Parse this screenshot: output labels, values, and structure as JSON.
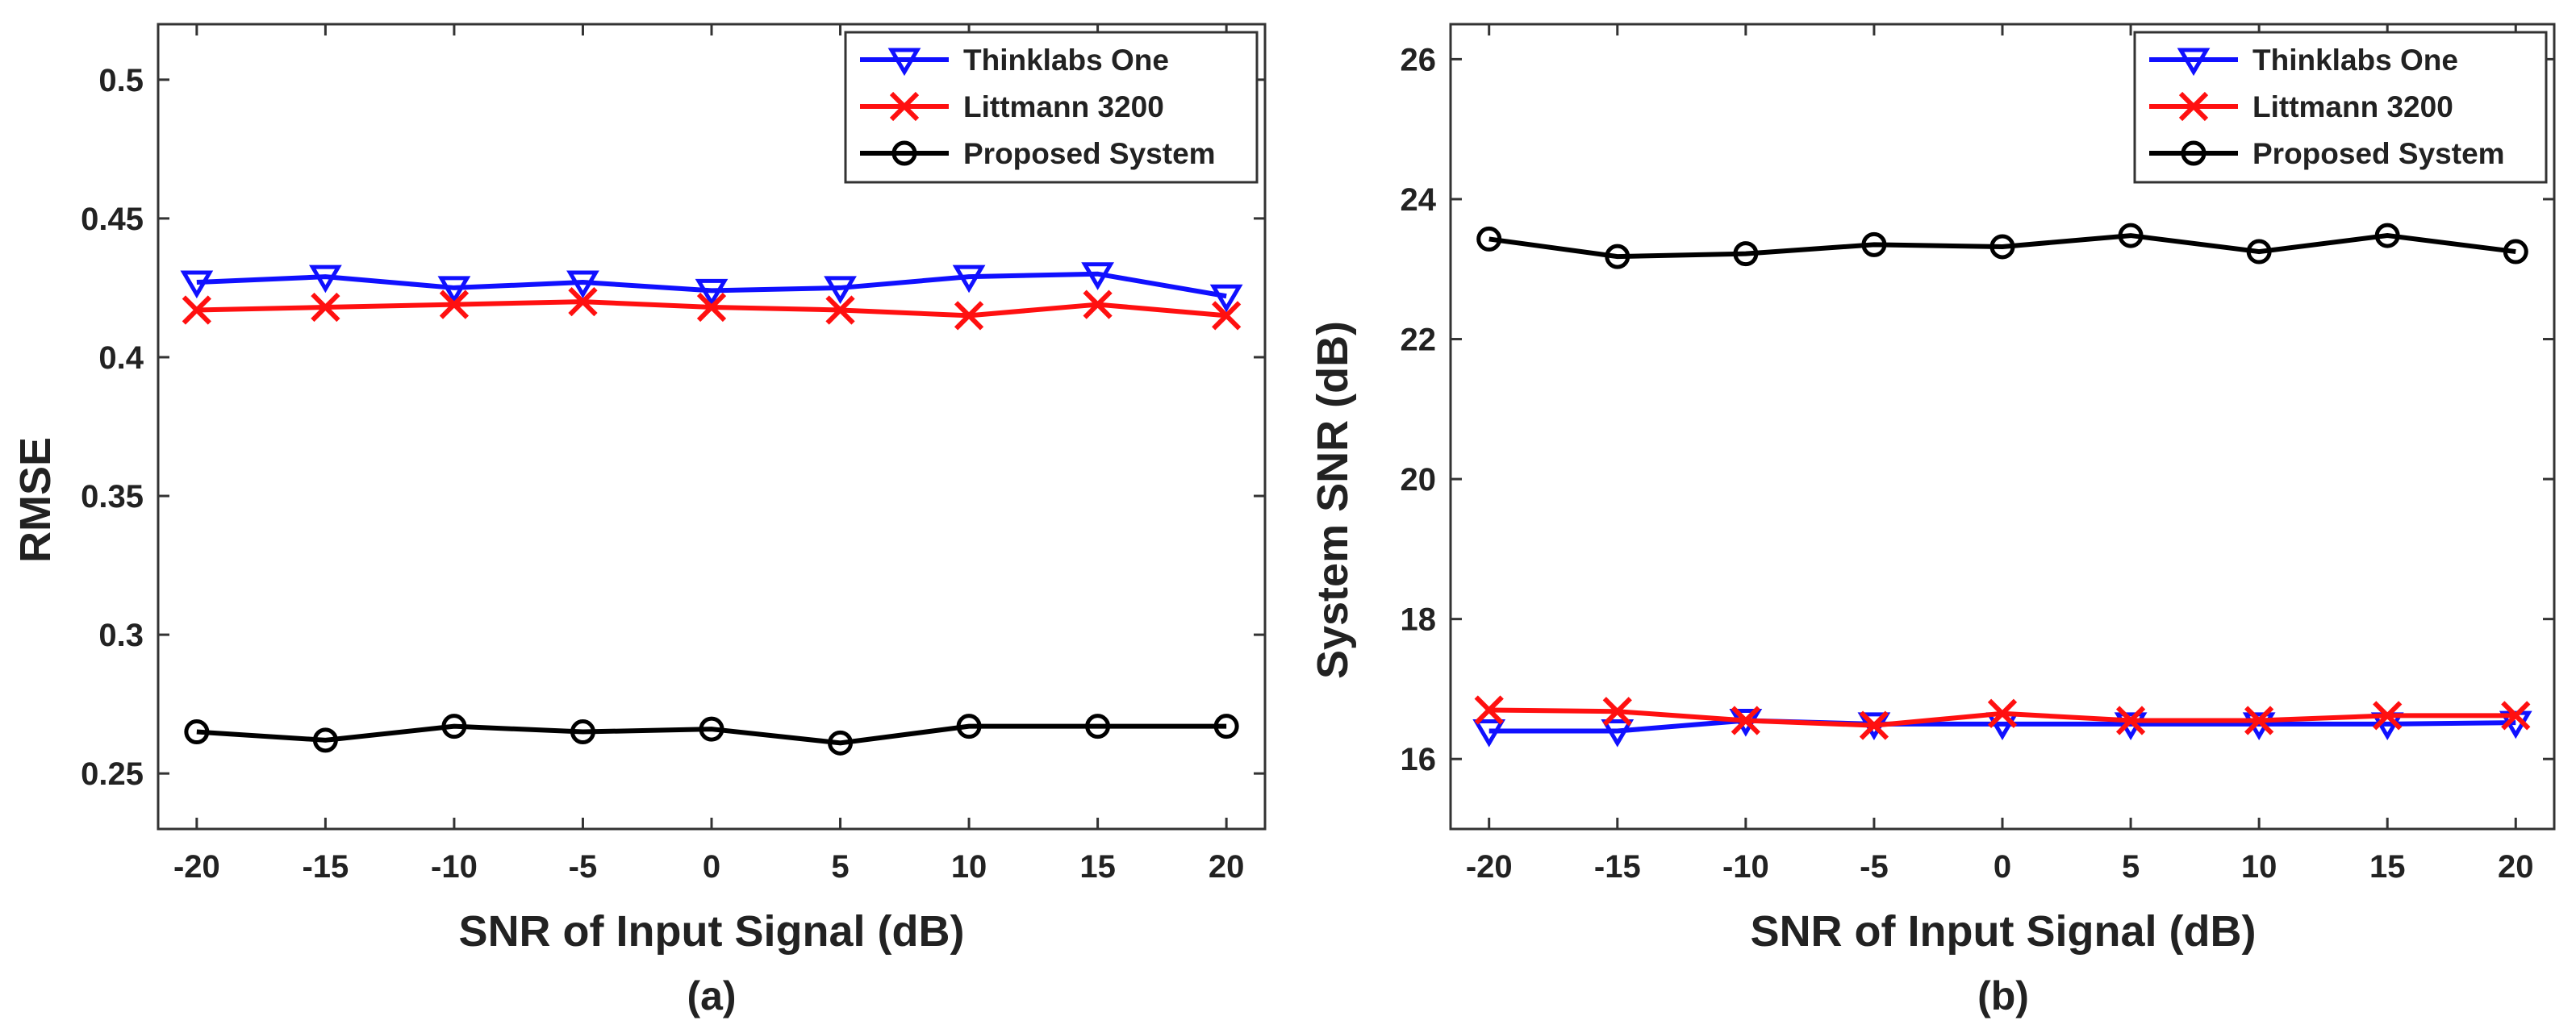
{
  "colors": {
    "thinklabs": "#1010ff",
    "littmann": "#ff1010",
    "proposed": "#000000",
    "axis": "#333333",
    "text": "#222222"
  },
  "chart_data": [
    {
      "id": "a",
      "type": "line",
      "caption": "(a)",
      "xlabel": "SNR of Input Signal (dB)",
      "ylabel": "RMSE",
      "xlim": [
        -21.5,
        21.5
      ],
      "ylim": [
        0.23,
        0.52
      ],
      "x_ticks": [
        -20,
        -15,
        -10,
        -5,
        0,
        5,
        10,
        15,
        20
      ],
      "x_tick_labels": [
        "-20",
        "-15",
        "-10",
        "-5",
        "0",
        "5",
        "10",
        "15",
        "20"
      ],
      "y_ticks": [
        0.25,
        0.3,
        0.35,
        0.4,
        0.45,
        0.5
      ],
      "y_tick_labels": [
        "0.25",
        "0.3",
        "0.35",
        "0.4",
        "0.45",
        "0.5"
      ],
      "legend_position": "top-right",
      "x": [
        -20,
        -15,
        -10,
        -5,
        0,
        5,
        10,
        15,
        20
      ],
      "series": [
        {
          "name": "Thinklabs One",
          "marker": "triangle-down",
          "color_key": "thinklabs",
          "values": [
            0.427,
            0.429,
            0.425,
            0.427,
            0.424,
            0.425,
            0.429,
            0.43,
            0.422
          ]
        },
        {
          "name": "Littmann 3200",
          "marker": "x",
          "color_key": "littmann",
          "values": [
            0.417,
            0.418,
            0.419,
            0.42,
            0.418,
            0.417,
            0.415,
            0.419,
            0.415
          ]
        },
        {
          "name": "Proposed System",
          "marker": "circle",
          "color_key": "proposed",
          "values": [
            0.265,
            0.262,
            0.267,
            0.265,
            0.266,
            0.261,
            0.267,
            0.267,
            0.267
          ]
        }
      ]
    },
    {
      "id": "b",
      "type": "line",
      "caption": "(b)",
      "xlabel": "SNR of Input Signal (dB)",
      "ylabel": "System SNR (dB)",
      "xlim": [
        -21.5,
        21.5
      ],
      "ylim": [
        15,
        26.5
      ],
      "x_ticks": [
        -20,
        -15,
        -10,
        -5,
        0,
        5,
        10,
        15,
        20
      ],
      "x_tick_labels": [
        "-20",
        "-15",
        "-10",
        "-5",
        "0",
        "5",
        "10",
        "15",
        "20"
      ],
      "y_ticks": [
        16,
        18,
        20,
        22,
        24,
        26
      ],
      "y_tick_labels": [
        "16",
        "18",
        "20",
        "22",
        "24",
        "26"
      ],
      "legend_position": "top-right",
      "x": [
        -20,
        -15,
        -10,
        -5,
        0,
        5,
        10,
        15,
        20
      ],
      "series": [
        {
          "name": "Thinklabs One",
          "marker": "triangle-down",
          "color_key": "thinklabs",
          "values": [
            16.4,
            16.4,
            16.55,
            16.5,
            16.5,
            16.5,
            16.5,
            16.5,
            16.52
          ]
        },
        {
          "name": "Littmann 3200",
          "marker": "x",
          "color_key": "littmann",
          "values": [
            16.7,
            16.68,
            16.55,
            16.48,
            16.65,
            16.55,
            16.55,
            16.62,
            16.62
          ]
        },
        {
          "name": "Proposed System",
          "marker": "circle",
          "color_key": "proposed",
          "values": [
            23.43,
            23.18,
            23.22,
            23.35,
            23.32,
            23.48,
            23.25,
            23.48,
            23.25
          ]
        }
      ]
    }
  ]
}
